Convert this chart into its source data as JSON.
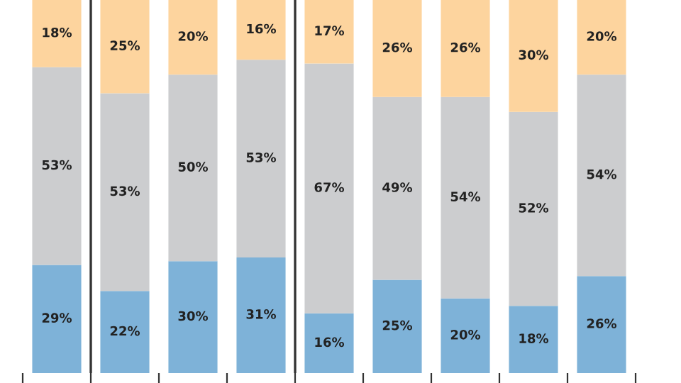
{
  "chart_data": {
    "type": "bar",
    "stacked": true,
    "categories": [
      null,
      null,
      null,
      null,
      null,
      null,
      null,
      null,
      null
    ],
    "ylim": [
      0,
      100
    ],
    "series": [
      {
        "color": "#7eb2d8",
        "values": [
          29,
          22,
          30,
          31,
          16,
          25,
          20,
          18,
          26
        ],
        "value_labels": [
          "29%",
          "22%",
          "30%",
          "31%",
          "16%",
          "25%",
          "20%",
          "18%",
          "26%"
        ]
      },
      {
        "color": "#cccdcf",
        "values": [
          53,
          53,
          50,
          53,
          67,
          49,
          54,
          52,
          54
        ],
        "value_labels": [
          "53%",
          "53%",
          "50%",
          "53%",
          "67%",
          "49%",
          "54%",
          "52%",
          "54%"
        ]
      },
      {
        "color": "#fdd49e",
        "values": [
          18,
          25,
          20,
          16,
          17,
          26,
          26,
          30,
          20
        ],
        "value_labels": [
          "18%",
          "25%",
          "20%",
          "16%",
          "17%",
          "26%",
          "26%",
          "30%",
          "20%"
        ]
      }
    ]
  }
}
